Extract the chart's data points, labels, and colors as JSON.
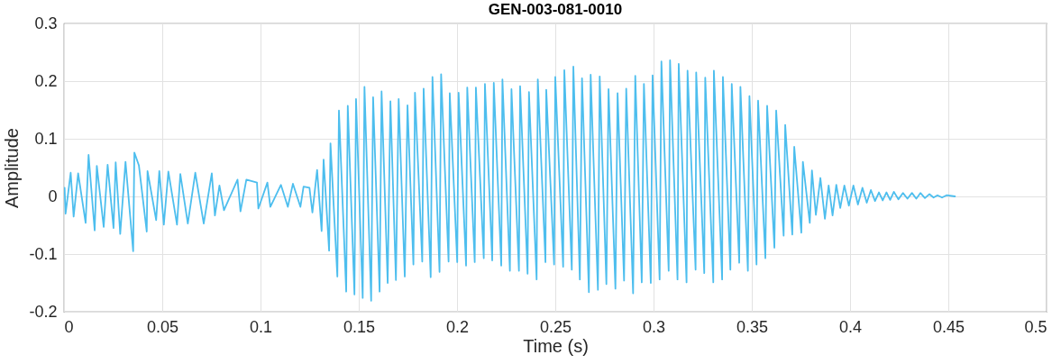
{
  "chart_data": {
    "type": "line",
    "title": "GEN-003-081-0010",
    "xlabel": "Time (s)",
    "ylabel": "Amplitude",
    "x": [
      0.0003,
      0.0008,
      0.0034,
      0.0049,
      0.0072,
      0.011,
      0.0125,
      0.0156,
      0.0167,
      0.0202,
      0.0222,
      0.0252,
      0.0263,
      0.0286,
      0.0313,
      0.0352,
      0.0358,
      0.0381,
      0.0421,
      0.0425,
      0.0469,
      0.0485,
      0.0508,
      0.0531,
      0.0575,
      0.0592,
      0.063,
      0.0668,
      0.0711,
      0.0752,
      0.0768,
      0.0791,
      0.0814,
      0.0883,
      0.0898,
      0.0928,
      0.0982,
      0.0989,
      0.1035,
      0.105,
      0.1104,
      0.1139,
      0.1165,
      0.1203,
      0.1219,
      0.1249,
      0.1264,
      0.1288,
      0.1311,
      0.1321,
      0.1349,
      0.1356,
      0.1391,
      0.1399,
      0.1436,
      0.1444,
      0.1478,
      0.1486,
      0.152,
      0.1529,
      0.1563,
      0.1573,
      0.1606,
      0.1616,
      0.1647,
      0.1661,
      0.1689,
      0.1703,
      0.1734,
      0.1748,
      0.1778,
      0.1786,
      0.1823,
      0.183,
      0.1866,
      0.1875,
      0.1911,
      0.1919,
      0.1957,
      0.1963,
      0.2001,
      0.2008,
      0.2046,
      0.2052,
      0.209,
      0.2096,
      0.2136,
      0.2142,
      0.2179,
      0.2187,
      0.2225,
      0.2231,
      0.2269,
      0.2277,
      0.2315,
      0.2321,
      0.2359,
      0.2366,
      0.2405,
      0.2411,
      0.245,
      0.2454,
      0.2494,
      0.25,
      0.254,
      0.2546,
      0.2584,
      0.2592,
      0.2625,
      0.2636,
      0.2671,
      0.268,
      0.2717,
      0.2726,
      0.276,
      0.2771,
      0.2806,
      0.2817,
      0.285,
      0.2861,
      0.2896,
      0.2907,
      0.294,
      0.2951,
      0.2986,
      0.2995,
      0.3031,
      0.304,
      0.3077,
      0.3084,
      0.3122,
      0.3128,
      0.3168,
      0.3173,
      0.3214,
      0.3217,
      0.3258,
      0.3263,
      0.3304,
      0.3307,
      0.3349,
      0.3353,
      0.3391,
      0.3398,
      0.3436,
      0.3442,
      0.348,
      0.3488,
      0.3524,
      0.3532,
      0.3569,
      0.3578,
      0.3615,
      0.3624,
      0.3662,
      0.367,
      0.3706,
      0.3716,
      0.3752,
      0.376,
      0.3795,
      0.3806,
      0.3826,
      0.3849,
      0.3872,
      0.3891,
      0.3911,
      0.393,
      0.395,
      0.3971,
      0.3994,
      0.4017,
      0.404,
      0.4063,
      0.4085,
      0.4106,
      0.4127,
      0.4147,
      0.4166,
      0.4185,
      0.4204,
      0.4223,
      0.4246,
      0.4269,
      0.4292,
      0.4315,
      0.4337,
      0.4358,
      0.4381,
      0.4404,
      0.4425,
      0.4445,
      0.4468,
      0.4491,
      0.4534
    ],
    "series": [
      {
        "color": "#4dbeee",
        "values": [
          0.015,
          -0.03,
          0.041,
          -0.035,
          0.04,
          -0.046,
          0.072,
          -0.059,
          0.053,
          -0.053,
          0.055,
          -0.055,
          0.059,
          -0.065,
          0.06,
          -0.095,
          0.076,
          0.054,
          -0.061,
          0.044,
          -0.041,
          0.044,
          -0.049,
          0.043,
          -0.049,
          0.039,
          -0.047,
          0.041,
          -0.047,
          0.04,
          -0.033,
          0.019,
          -0.024,
          0.029,
          -0.026,
          0.029,
          0.024,
          -0.021,
          0.024,
          -0.018,
          0.02,
          -0.018,
          0.022,
          -0.018,
          0.017,
          0.015,
          -0.028,
          0.046,
          -0.06,
          0.064,
          -0.094,
          0.092,
          -0.139,
          0.149,
          -0.165,
          0.157,
          -0.17,
          0.169,
          -0.176,
          0.19,
          -0.181,
          0.172,
          -0.165,
          0.182,
          -0.15,
          0.165,
          -0.145,
          0.169,
          -0.139,
          0.158,
          -0.118,
          0.18,
          -0.113,
          0.187,
          -0.14,
          0.207,
          -0.131,
          0.212,
          -0.113,
          0.179,
          -0.114,
          0.18,
          -0.12,
          0.189,
          -0.114,
          0.189,
          -0.107,
          0.195,
          -0.111,
          0.197,
          -0.12,
          0.203,
          -0.129,
          0.186,
          -0.129,
          0.191,
          -0.134,
          0.181,
          -0.144,
          0.203,
          -0.114,
          0.185,
          -0.118,
          0.207,
          -0.122,
          0.219,
          -0.127,
          0.225,
          -0.144,
          0.205,
          -0.166,
          0.211,
          -0.162,
          0.208,
          -0.152,
          0.186,
          -0.16,
          0.179,
          -0.146,
          0.187,
          -0.168,
          0.209,
          -0.149,
          0.195,
          -0.15,
          0.21,
          -0.144,
          0.234,
          -0.129,
          0.236,
          -0.144,
          0.23,
          -0.149,
          0.218,
          -0.127,
          0.215,
          -0.133,
          0.206,
          -0.149,
          0.218,
          -0.144,
          0.207,
          -0.127,
          0.195,
          -0.115,
          0.19,
          -0.129,
          0.174,
          -0.118,
          0.166,
          -0.107,
          0.157,
          -0.089,
          0.149,
          -0.068,
          0.124,
          -0.066,
          0.086,
          -0.063,
          0.06,
          -0.046,
          0.045,
          -0.032,
          0.032,
          -0.039,
          0.019,
          -0.033,
          0.02,
          -0.02,
          0.019,
          -0.016,
          0.019,
          -0.014,
          0.015,
          -0.011,
          0.011,
          -0.008,
          0.007,
          -0.007,
          0.007,
          -0.006,
          0.008,
          -0.005,
          0.006,
          -0.004,
          0.006,
          -0.004,
          0.006,
          -0.003,
          0.004,
          -0.002,
          0.002,
          -0.002,
          0.002,
          0.0
        ]
      }
    ],
    "xlim": [
      0,
      0.5
    ],
    "ylim": [
      -0.2,
      0.3
    ],
    "xticks": [
      0,
      0.05,
      0.1,
      0.15,
      0.2,
      0.25,
      0.3,
      0.35,
      0.4,
      0.45,
      0.5
    ],
    "yticks": [
      -0.2,
      -0.1,
      0,
      0.1,
      0.2,
      0.3
    ],
    "grid": true
  }
}
